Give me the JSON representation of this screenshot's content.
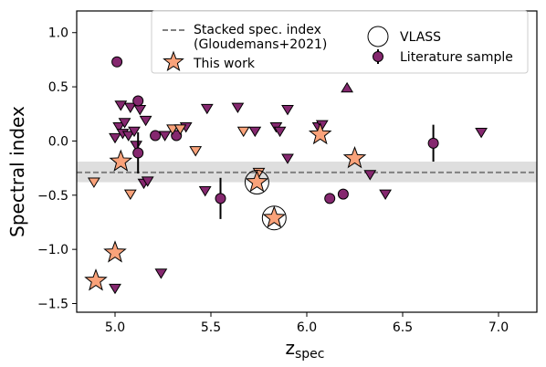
{
  "chart_data": {
    "type": "scatter",
    "xlabel": "z",
    "xlabel_sub": "spec",
    "ylabel": "Spectral index",
    "xlim": [
      4.8,
      7.2
    ],
    "ylim": [
      -1.58,
      1.2
    ],
    "xticks": [
      "5.0",
      "5.5",
      "6.0",
      "6.5",
      "7.0"
    ],
    "xtick_values": [
      5.0,
      5.5,
      6.0,
      6.5,
      7.0
    ],
    "yticks": [
      "1.0",
      "0.5",
      "0.0",
      "−0.5",
      "−1.0",
      "−1.5"
    ],
    "ytick_values": [
      1.0,
      0.5,
      0.0,
      -0.5,
      -1.0,
      -1.5
    ],
    "grid": false,
    "legend_position": "top-right",
    "colors": {
      "this_work": "#F9A27A",
      "literature": "#85286F",
      "stack_line": "#808080",
      "stack_band": "#C8C8C8",
      "vlass_ring": "#000000"
    },
    "stacked_index": {
      "value": -0.29,
      "band": [
        -0.38,
        -0.19
      ]
    },
    "legend": {
      "stacked": "Stacked spec. index\n(Gloudemans+2021)",
      "this_work": "This work",
      "vlass": "VLASS",
      "literature": "Literature sample"
    },
    "series": [
      {
        "name": "This work",
        "marker": "star",
        "points": [
          {
            "x": 4.9,
            "y": -1.29
          },
          {
            "x": 5.0,
            "y": -1.03
          },
          {
            "x": 5.03,
            "y": -0.19
          },
          {
            "x": 5.74,
            "y": -0.38
          },
          {
            "x": 5.83,
            "y": -0.71
          },
          {
            "x": 6.07,
            "y": 0.06
          },
          {
            "x": 6.25,
            "y": -0.16
          }
        ]
      },
      {
        "name": "This work (upper limits)",
        "marker": "triangle-down",
        "points": [
          {
            "x": 4.89,
            "y": -0.38
          },
          {
            "x": 5.08,
            "y": -0.49
          },
          {
            "x": 5.3,
            "y": 0.11
          },
          {
            "x": 5.34,
            "y": 0.11
          },
          {
            "x": 5.42,
            "y": -0.09
          },
          {
            "x": 5.67,
            "y": 0.09
          },
          {
            "x": 5.75,
            "y": -0.29
          }
        ]
      },
      {
        "name": "Literature sample",
        "marker": "circle",
        "points": [
          {
            "x": 5.01,
            "y": 0.73
          },
          {
            "x": 5.12,
            "y": 0.37
          },
          {
            "x": 5.12,
            "y": -0.11,
            "yerr": 0.19
          },
          {
            "x": 5.21,
            "y": 0.05
          },
          {
            "x": 5.32,
            "y": 0.05
          },
          {
            "x": 5.55,
            "y": -0.53,
            "yerr": 0.19
          },
          {
            "x": 6.12,
            "y": -0.53
          },
          {
            "x": 6.19,
            "y": -0.49
          },
          {
            "x": 6.66,
            "y": -0.02,
            "yerr": 0.17
          }
        ]
      },
      {
        "name": "Literature sample (upper limits)",
        "marker": "triangle-down",
        "points": [
          {
            "x": 5.0,
            "y": 0.03
          },
          {
            "x": 5.02,
            "y": 0.13
          },
          {
            "x": 5.03,
            "y": 0.33
          },
          {
            "x": 5.04,
            "y": 0.07
          },
          {
            "x": 5.05,
            "y": 0.17
          },
          {
            "x": 5.08,
            "y": 0.31
          },
          {
            "x": 5.07,
            "y": 0.05
          },
          {
            "x": 5.1,
            "y": 0.09
          },
          {
            "x": 5.11,
            "y": -0.04
          },
          {
            "x": 5.13,
            "y": 0.29
          },
          {
            "x": 5.15,
            "y": -0.39
          },
          {
            "x": 5.16,
            "y": 0.19
          },
          {
            "x": 5.17,
            "y": -0.37
          },
          {
            "x": 5.26,
            "y": 0.05
          },
          {
            "x": 5.34,
            "y": 0.11
          },
          {
            "x": 5.37,
            "y": 0.13
          },
          {
            "x": 5.48,
            "y": 0.3
          },
          {
            "x": 5.47,
            "y": -0.46
          },
          {
            "x": 5.64,
            "y": 0.31
          },
          {
            "x": 5.73,
            "y": 0.09
          },
          {
            "x": 5.84,
            "y": 0.13
          },
          {
            "x": 5.86,
            "y": 0.09
          },
          {
            "x": 5.9,
            "y": 0.29
          },
          {
            "x": 5.9,
            "y": -0.16
          },
          {
            "x": 6.06,
            "y": 0.13
          },
          {
            "x": 6.08,
            "y": 0.15
          },
          {
            "x": 6.33,
            "y": -0.31
          },
          {
            "x": 6.41,
            "y": -0.49
          },
          {
            "x": 6.91,
            "y": 0.08
          },
          {
            "x": 5.24,
            "y": -1.22
          },
          {
            "x": 5.0,
            "y": -1.36
          }
        ]
      },
      {
        "name": "Literature sample (lower limits)",
        "marker": "triangle-up",
        "points": [
          {
            "x": 6.21,
            "y": 0.49
          }
        ]
      },
      {
        "name": "VLASS",
        "marker": "open-circle",
        "points": [
          {
            "x": 5.74,
            "y": -0.38
          },
          {
            "x": 5.83,
            "y": -0.71
          }
        ]
      }
    ]
  }
}
